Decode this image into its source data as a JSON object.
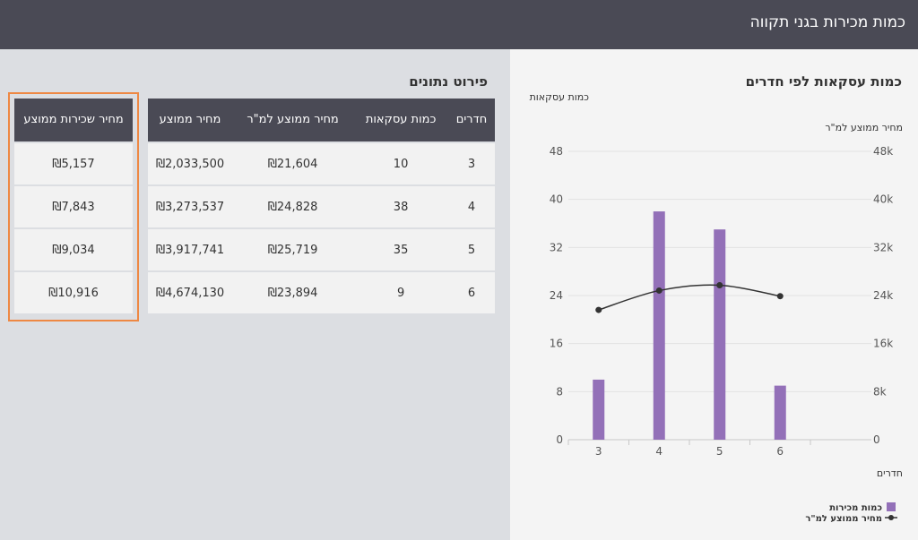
{
  "header": {
    "title": "כמות מכירות בגני תקווה"
  },
  "chart_title": "כמות עסקאות לפי חדרים",
  "details_title": "פירוט נתונים",
  "table": {
    "headers": [
      "חדרים",
      "כמות עסקאות",
      "מחיר ממוצע למ\"ר",
      "מחיר ממוצע"
    ],
    "rows": [
      [
        "3",
        "10",
        "₪21,604",
        "₪2,033,500"
      ],
      [
        "4",
        "38",
        "₪24,828",
        "₪3,273,537"
      ],
      [
        "5",
        "35",
        "₪25,719",
        "₪3,917,741"
      ],
      [
        "6",
        "9",
        "₪23,894",
        "₪4,674,130"
      ]
    ]
  },
  "rent_table": {
    "header": "מחיר שכירות ממוצע",
    "values": [
      "₪5,157",
      "₪7,843",
      "₪9,034",
      "₪10,916"
    ],
    "highlight_color": "#ee8844"
  },
  "chart_data": {
    "type": "bar",
    "categories": [
      "3",
      "4",
      "5",
      "6"
    ],
    "series": [
      {
        "name": "כמות מכירות",
        "type": "bar",
        "axis": "left",
        "values": [
          10,
          38,
          35,
          9
        ],
        "color": "#9370b8"
      },
      {
        "name": "מחיר ממוצע למ\"ר",
        "type": "line",
        "axis": "right",
        "values": [
          21604,
          24828,
          25719,
          23894
        ],
        "color": "#333333"
      }
    ],
    "xlabel": "חדרים",
    "ylabel_left": "כמות עסקאות",
    "ylabel_right": "מחיר ממוצע למ\"ר",
    "yticks_left": [
      "0",
      "8",
      "16",
      "24",
      "32",
      "40",
      "48"
    ],
    "yticks_right": [
      "0",
      "8k",
      "16k",
      "24k",
      "32k",
      "40k",
      "48k"
    ],
    "ylim_left": [
      0,
      48
    ],
    "ylim_right": [
      0,
      48000
    ],
    "grid": true,
    "legend": "bottom-right"
  }
}
